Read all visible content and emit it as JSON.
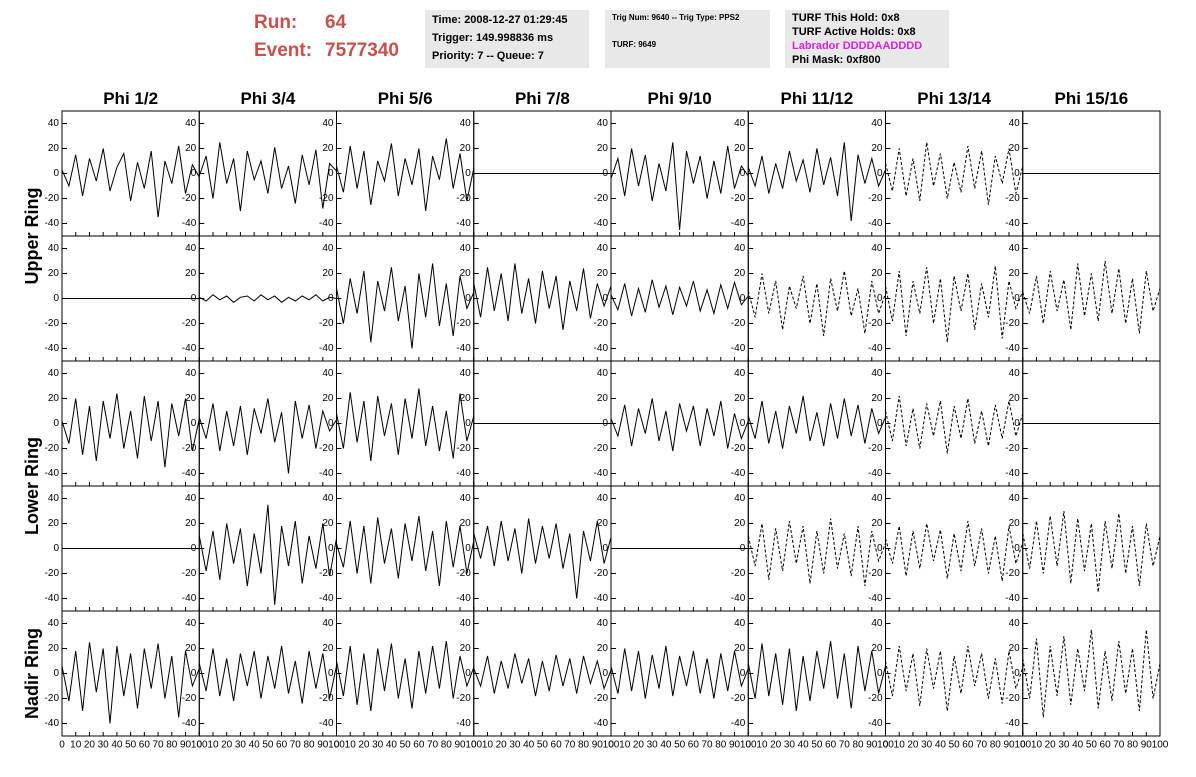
{
  "header": {
    "run_label": "Run:",
    "run": 64,
    "event_label": "Event:",
    "event": 7577340,
    "time_box": [
      "Time: 2008-12-27 01:29:45",
      "Trigger: 149.998836 ms",
      "Priority: 7 -- Queue: 7"
    ],
    "trig_box": [
      "Trig Num: 9640 -- Trig Type: PPS2",
      "TURF: 9649"
    ],
    "turf_box": [
      "TURF This Hold: 0x8",
      "TURF Active Holds: 0x8",
      "Labrador DDDDAADDDD",
      "Phi Mask: 0xf800"
    ]
  },
  "chart_data": {
    "type": "line",
    "color": "#000000",
    "columns": [
      "Phi 1/2",
      "Phi 3/4",
      "Phi 5/6",
      "Phi 7/8",
      "Phi 9/10",
      "Phi 11/12",
      "Phi 13/14",
      "Phi 15/16"
    ],
    "ring_labels": [
      "Upper Ring",
      "Lower Ring",
      "Nadir Ring"
    ],
    "x": [
      0,
      5,
      10,
      15,
      20,
      25,
      30,
      35,
      40,
      45,
      50,
      55,
      60,
      65,
      70,
      75,
      80,
      85,
      90,
      95,
      100
    ],
    "xlim": [
      0,
      100
    ],
    "xticks": [
      0,
      10,
      20,
      30,
      40,
      50,
      60,
      70,
      80,
      90,
      100
    ],
    "ylim": [
      -50,
      50
    ],
    "yticks": [
      -40,
      -20,
      0,
      20,
      40
    ],
    "panels": [
      [
        {
          "style": "solid",
          "values": [
            3,
            -10,
            15,
            -18,
            12,
            -6,
            20,
            -14,
            5,
            16,
            -22,
            9,
            -12,
            18,
            -35,
            10,
            -8,
            22,
            -16,
            7,
            -3
          ]
        },
        {
          "style": "solid",
          "values": [
            -2,
            14,
            -20,
            25,
            -8,
            12,
            -30,
            18,
            -5,
            10,
            -16,
            21,
            -12,
            6,
            -24,
            15,
            -9,
            19,
            -28,
            8,
            2
          ]
        },
        {
          "style": "solid",
          "values": [
            6,
            -15,
            22,
            -12,
            18,
            -25,
            10,
            -6,
            24,
            -18,
            12,
            -9,
            20,
            -30,
            14,
            -5,
            28,
            -12,
            16,
            -22,
            4
          ]
        },
        {
          "style": "solid",
          "values": [
            0,
            0,
            0,
            0,
            0,
            0,
            0,
            0,
            0,
            0,
            0,
            0,
            0,
            0,
            0,
            0,
            0,
            0,
            0,
            0,
            0
          ]
        },
        {
          "style": "solid",
          "values": [
            -4,
            12,
            -18,
            20,
            -10,
            15,
            -22,
            8,
            -14,
            25,
            -45,
            18,
            -8,
            14,
            -20,
            10,
            -16,
            22,
            -12,
            6,
            -2
          ]
        },
        {
          "style": "solid",
          "values": [
            5,
            -10,
            14,
            -16,
            8,
            -12,
            18,
            -6,
            11,
            -15,
            20,
            -9,
            13,
            -18,
            25,
            -38,
            15,
            -8,
            12,
            -10,
            3
          ]
        },
        {
          "style": "dashed",
          "values": [
            8,
            -14,
            20,
            -18,
            12,
            -22,
            25,
            -10,
            16,
            -20,
            9,
            -15,
            22,
            -12,
            18,
            -25,
            14,
            -8,
            20,
            -16,
            6
          ]
        },
        {
          "style": "solid",
          "values": [
            0,
            0,
            0,
            0,
            0,
            0,
            0,
            0,
            0,
            0,
            0,
            0,
            0,
            0,
            0,
            0,
            0,
            0,
            0,
            0,
            0
          ]
        }
      ],
      [
        {
          "style": "solid",
          "values": [
            0,
            0,
            0,
            0,
            0,
            0,
            0,
            0,
            0,
            0,
            0,
            0,
            0,
            0,
            0,
            0,
            0,
            0,
            0,
            0,
            0
          ]
        },
        {
          "style": "solid",
          "values": [
            1,
            -2,
            3,
            -1,
            2,
            -3,
            1,
            2,
            -2,
            3,
            -1,
            2,
            -3,
            1,
            -2,
            2,
            -1,
            3,
            -2,
            1,
            0
          ]
        },
        {
          "style": "solid",
          "values": [
            8,
            -20,
            16,
            -12,
            22,
            -35,
            14,
            -10,
            25,
            -18,
            10,
            -40,
            20,
            -15,
            28,
            -22,
            12,
            -30,
            18,
            -8,
            5
          ]
        },
        {
          "style": "solid",
          "values": [
            12,
            -15,
            25,
            -10,
            20,
            -18,
            28,
            -12,
            16,
            -20,
            22,
            -8,
            18,
            -25,
            14,
            -10,
            24,
            -16,
            12,
            -6,
            10
          ]
        },
        {
          "style": "solid",
          "values": [
            3,
            -9,
            12,
            -14,
            8,
            -11,
            15,
            -7,
            10,
            -13,
            9,
            -6,
            14,
            -10,
            7,
            -12,
            11,
            -8,
            13,
            -5,
            2
          ]
        },
        {
          "style": "dashed",
          "values": [
            6,
            -15,
            20,
            -12,
            14,
            -25,
            10,
            -8,
            18,
            -20,
            12,
            -30,
            16,
            -10,
            22,
            -14,
            8,
            -28,
            14,
            -12,
            4
          ]
        },
        {
          "style": "dashed",
          "values": [
            10,
            -18,
            22,
            -30,
            14,
            -12,
            25,
            -20,
            16,
            -35,
            18,
            -10,
            20,
            -25,
            12,
            -15,
            26,
            -32,
            14,
            -8,
            6
          ]
        },
        {
          "style": "dashed",
          "values": [
            5,
            -12,
            18,
            -20,
            22,
            -10,
            15,
            -25,
            28,
            -14,
            20,
            -18,
            30,
            -12,
            24,
            -20,
            16,
            -28,
            22,
            -10,
            8
          ]
        }
      ],
      [
        {
          "style": "solid",
          "values": [
            2,
            -16,
            20,
            -25,
            14,
            -30,
            18,
            -12,
            24,
            -20,
            10,
            -28,
            22,
            -14,
            18,
            -35,
            16,
            -10,
            20,
            -22,
            4
          ]
        },
        {
          "style": "solid",
          "values": [
            5,
            -12,
            16,
            -22,
            10,
            -18,
            14,
            -25,
            12,
            -8,
            20,
            -15,
            9,
            -40,
            18,
            -12,
            15,
            -20,
            10,
            -6,
            3
          ]
        },
        {
          "style": "solid",
          "values": [
            8,
            -20,
            25,
            -15,
            18,
            -30,
            22,
            -10,
            16,
            -25,
            20,
            -12,
            28,
            -18,
            14,
            -22,
            10,
            -28,
            24,
            -14,
            6
          ]
        },
        {
          "style": "solid",
          "values": [
            0,
            0,
            0,
            0,
            0,
            0,
            0,
            0,
            0,
            0,
            0,
            0,
            0,
            0,
            0,
            0,
            0,
            0,
            0,
            0,
            0
          ]
        },
        {
          "style": "solid",
          "values": [
            4,
            -10,
            15,
            -18,
            12,
            -8,
            20,
            -14,
            10,
            -22,
            16,
            -6,
            14,
            -18,
            12,
            -10,
            18,
            -20,
            8,
            -12,
            2
          ]
        },
        {
          "style": "solid",
          "values": [
            6,
            -12,
            18,
            -16,
            10,
            -20,
            14,
            -8,
            22,
            -14,
            9,
            -18,
            16,
            -12,
            20,
            -10,
            15,
            -16,
            12,
            -8,
            5
          ]
        },
        {
          "style": "dashed",
          "values": [
            10,
            -14,
            22,
            -18,
            12,
            -20,
            16,
            -10,
            18,
            -24,
            14,
            -12,
            20,
            -16,
            10,
            -18,
            15,
            -12,
            18,
            -10,
            8
          ]
        },
        {
          "style": "solid",
          "values": [
            0,
            0,
            0,
            0,
            0,
            0,
            0,
            0,
            0,
            0,
            0,
            0,
            0,
            0,
            0,
            0,
            0,
            0,
            0,
            0,
            0
          ]
        }
      ],
      [
        {
          "style": "solid",
          "values": [
            0,
            0,
            0,
            0,
            0,
            0,
            0,
            0,
            0,
            0,
            0,
            0,
            0,
            0,
            0,
            0,
            0,
            0,
            0,
            0,
            0
          ]
        },
        {
          "style": "solid",
          "values": [
            10,
            -18,
            14,
            -25,
            20,
            -12,
            16,
            -30,
            12,
            -20,
            35,
            -45,
            18,
            -14,
            22,
            -28,
            10,
            -16,
            20,
            -22,
            8
          ]
        },
        {
          "style": "solid",
          "values": [
            4,
            -15,
            22,
            -20,
            18,
            -28,
            25,
            -12,
            16,
            -24,
            20,
            -10,
            26,
            -18,
            14,
            -30,
            22,
            -15,
            18,
            -20,
            6
          ]
        },
        {
          "style": "solid",
          "values": [
            12,
            -8,
            18,
            -14,
            22,
            -10,
            16,
            -20,
            24,
            -12,
            18,
            -8,
            20,
            -16,
            12,
            -40,
            14,
            -10,
            22,
            -12,
            9
          ]
        },
        {
          "style": "solid",
          "values": [
            0,
            0,
            0,
            0,
            0,
            0,
            0,
            0,
            0,
            0,
            0,
            0,
            0,
            0,
            0,
            0,
            0,
            0,
            0,
            0,
            0
          ]
        },
        {
          "style": "dashed",
          "values": [
            10,
            -14,
            20,
            -25,
            16,
            -18,
            22,
            -12,
            18,
            -28,
            14,
            -20,
            24,
            -16,
            12,
            -22,
            18,
            -30,
            14,
            -10,
            4
          ]
        },
        {
          "style": "dashed",
          "values": [
            8,
            -12,
            18,
            -22,
            14,
            -16,
            20,
            -10,
            15,
            -24,
            12,
            -18,
            22,
            -14,
            16,
            -20,
            10,
            -26,
            18,
            -12,
            5
          ]
        },
        {
          "style": "dashed",
          "values": [
            12,
            -16,
            22,
            -20,
            26,
            -14,
            30,
            -28,
            24,
            -18,
            20,
            -35,
            22,
            -16,
            28,
            -20,
            18,
            -30,
            20,
            -14,
            10
          ]
        }
      ],
      [
        {
          "style": "solid",
          "values": [
            6,
            -22,
            18,
            -30,
            25,
            -15,
            20,
            -40,
            22,
            -18,
            16,
            -28,
            20,
            -12,
            24,
            -20,
            14,
            -35,
            18,
            -10,
            4
          ]
        },
        {
          "style": "solid",
          "values": [
            8,
            -14,
            20,
            -18,
            12,
            -22,
            16,
            -10,
            18,
            -20,
            14,
            -12,
            22,
            -16,
            10,
            -24,
            18,
            -12,
            16,
            -20,
            6
          ]
        },
        {
          "style": "solid",
          "values": [
            10,
            -18,
            22,
            -25,
            16,
            -30,
            20,
            -14,
            24,
            -20,
            12,
            -28,
            18,
            -16,
            22,
            -12,
            26,
            -20,
            14,
            -10,
            5
          ]
        },
        {
          "style": "solid",
          "values": [
            4,
            -10,
            14,
            -16,
            10,
            -12,
            16,
            -8,
            12,
            -18,
            10,
            -14,
            15,
            -10,
            12,
            -16,
            14,
            -8,
            10,
            -12,
            3
          ]
        },
        {
          "style": "solid",
          "values": [
            6,
            -16,
            20,
            -14,
            18,
            -20,
            15,
            -12,
            22,
            -18,
            14,
            -10,
            18,
            -16,
            12,
            -20,
            16,
            -14,
            18,
            -10,
            4
          ]
        },
        {
          "style": "solid",
          "values": [
            8,
            -20,
            24,
            -18,
            16,
            -25,
            20,
            -30,
            14,
            -22,
            18,
            -12,
            26,
            -20,
            16,
            -28,
            22,
            -14,
            18,
            -16,
            6
          ]
        },
        {
          "style": "dashed",
          "values": [
            10,
            -18,
            22,
            -14,
            16,
            -26,
            20,
            -12,
            18,
            -30,
            14,
            -16,
            22,
            -10,
            16,
            -20,
            12,
            -24,
            18,
            -12,
            5
          ]
        },
        {
          "style": "dashed",
          "values": [
            12,
            -20,
            28,
            -35,
            22,
            -18,
            30,
            -25,
            20,
            -14,
            35,
            -28,
            18,
            -22,
            26,
            -16,
            20,
            -30,
            35,
            -20,
            8
          ]
        }
      ]
    ]
  }
}
